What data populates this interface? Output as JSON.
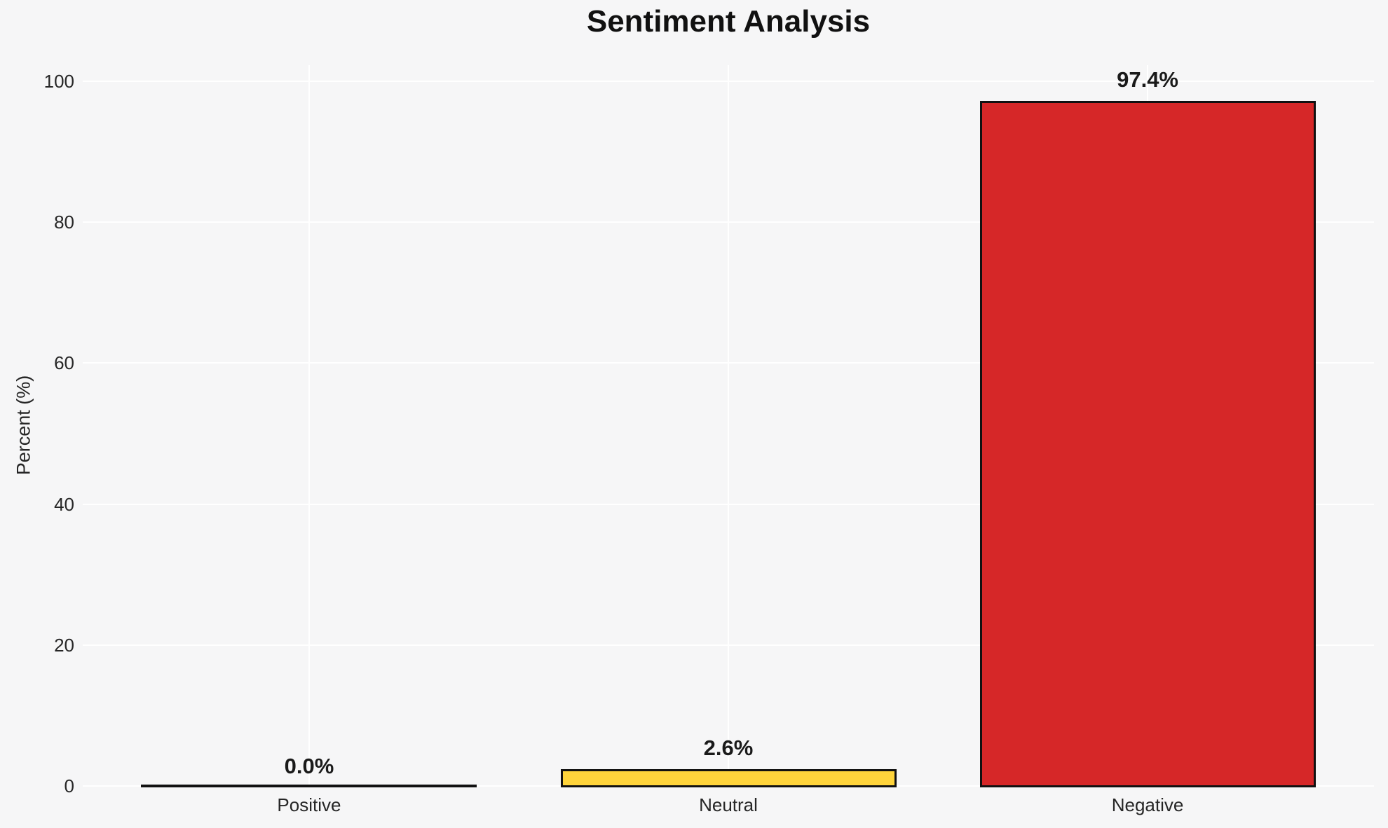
{
  "page": {
    "background": "#f6f6f7"
  },
  "chart_data": {
    "type": "bar",
    "title": "Sentiment Analysis",
    "categories": [
      "Positive",
      "Neutral",
      "Negative"
    ],
    "values": [
      0.0,
      2.6,
      97.4
    ],
    "value_labels": [
      "0.0%",
      "2.6%",
      "97.4%"
    ],
    "bar_colors": [
      null,
      "#ffd43b",
      "#d62728"
    ],
    "edge_color": "#111111",
    "xlabel": "",
    "ylabel": "Percent (%)",
    "yticks": [
      0,
      20,
      40,
      60,
      80,
      100
    ],
    "ytick_labels": [
      "0",
      "20",
      "40",
      "60",
      "80",
      "100"
    ],
    "ylim": [
      0,
      102.3
    ],
    "grid": true,
    "gridline_color": "#ffffff",
    "plot_background": "#f6f6f7",
    "legend": null
  }
}
